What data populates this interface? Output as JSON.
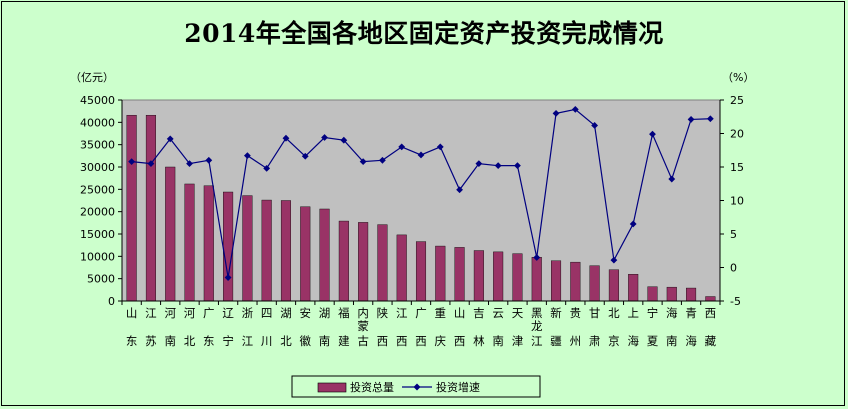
{
  "chart_data": {
    "type": "bar",
    "title": "2014年全国各地区固定资产投资完成情况",
    "y_left_unit": "（亿元）",
    "y_right_unit": "（%）",
    "y_left_range": [
      0,
      45000
    ],
    "y_left_ticks": [
      "0",
      "5000",
      "10000",
      "15000",
      "20000",
      "25000",
      "30000",
      "35000",
      "40000",
      "45000"
    ],
    "y_right_range": [
      -5,
      25
    ],
    "y_right_ticks": [
      "-5",
      "0",
      "5",
      "10",
      "15",
      "20",
      "25"
    ],
    "grid": false,
    "legend_position": "bottom",
    "categories": [
      [
        "山",
        "东"
      ],
      [
        "江",
        "苏"
      ],
      [
        "河",
        "南"
      ],
      [
        "河",
        "北"
      ],
      [
        "广",
        "东"
      ],
      [
        "辽",
        "宁"
      ],
      [
        "浙",
        "江"
      ],
      [
        "四",
        "川"
      ],
      [
        "湖",
        "北"
      ],
      [
        "安",
        "徽"
      ],
      [
        "湖",
        "南"
      ],
      [
        "福",
        "建"
      ],
      [
        "内",
        "蒙",
        "古"
      ],
      [
        "陕",
        "西"
      ],
      [
        "江",
        "西"
      ],
      [
        "广",
        "西"
      ],
      [
        "重",
        "庆"
      ],
      [
        "山",
        "西"
      ],
      [
        "吉",
        "林"
      ],
      [
        "云",
        "南"
      ],
      [
        "天",
        "津"
      ],
      [
        "黑",
        "龙",
        "江"
      ],
      [
        "新",
        "疆"
      ],
      [
        "贵",
        "州"
      ],
      [
        "甘",
        "肃"
      ],
      [
        "北",
        "京"
      ],
      [
        "上",
        "海"
      ],
      [
        "宁",
        "夏"
      ],
      [
        "海",
        "南"
      ],
      [
        "青",
        "海"
      ],
      [
        "西",
        "藏"
      ]
    ],
    "series": [
      {
        "name": "投资总量",
        "type": "bar",
        "axis": "left",
        "color": "#993366",
        "values": [
          41600,
          41600,
          30000,
          26200,
          25800,
          24400,
          23600,
          22600,
          22500,
          21100,
          20600,
          17900,
          17600,
          17100,
          14800,
          13300,
          12300,
          12000,
          11300,
          11000,
          10600,
          9800,
          9000,
          8700,
          7900,
          7000,
          6000,
          3200,
          3100,
          2900,
          1000
        ]
      },
      {
        "name": "投资增速",
        "type": "line",
        "axis": "right",
        "color": "#000080",
        "values": [
          15.8,
          15.5,
          19.2,
          15.5,
          16.0,
          -1.5,
          16.7,
          14.8,
          19.3,
          16.6,
          19.4,
          19.0,
          15.8,
          16.0,
          18.0,
          16.8,
          18.0,
          11.6,
          15.5,
          15.2,
          15.2,
          1.5,
          23.0,
          23.6,
          21.2,
          1.1,
          6.5,
          19.9,
          13.2,
          22.1,
          22.2
        ]
      }
    ]
  }
}
